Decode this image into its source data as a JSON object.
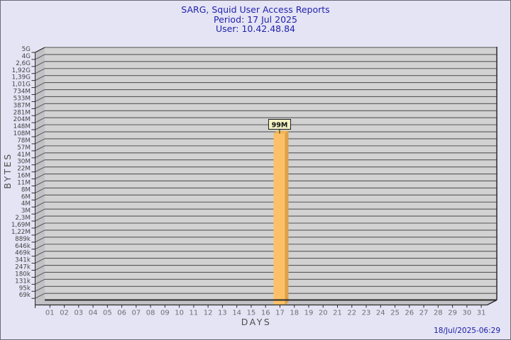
{
  "window": {
    "background": "#e4e4f5",
    "border_color": "#6a6a78"
  },
  "header": {
    "title": "SARG, Squid User Access Reports",
    "period": "Period: 17 Jul 2025",
    "user": "User: 10.42.48.84",
    "text_color": "#2222aa"
  },
  "footer": {
    "timestamp": "18/Jul/2025-06:29",
    "text_color": "#1b1ba5"
  },
  "chart_data": {
    "type": "bar",
    "title": "SARG, Squid User Access Reports",
    "subtitle": [
      "Period: 17 Jul 2025",
      "User: 10.42.48.84"
    ],
    "xlabel": "DAYS",
    "ylabel": "BYTES",
    "grid": true,
    "style": "3d-bar-pseudo-log-scale",
    "y_tick_labels": [
      "5G",
      "4G",
      "2,6G",
      "1,92G",
      "1,39G",
      "1,01G",
      "734M",
      "533M",
      "387M",
      "281M",
      "204M",
      "148M",
      "108M",
      "78M",
      "57M",
      "41M",
      "30M",
      "22M",
      "16M",
      "11M",
      "8M",
      "6M",
      "4M",
      "3M",
      "2,3M",
      "1,69M",
      "1,22M",
      "889k",
      "646k",
      "469k",
      "341k",
      "247k",
      "180k",
      "131k",
      "95k",
      "69k"
    ],
    "x_categories": [
      "01",
      "02",
      "03",
      "04",
      "05",
      "06",
      "07",
      "08",
      "09",
      "10",
      "11",
      "12",
      "13",
      "14",
      "15",
      "16",
      "17",
      "18",
      "19",
      "20",
      "21",
      "22",
      "23",
      "24",
      "25",
      "26",
      "27",
      "28",
      "29",
      "30",
      "31"
    ],
    "bars": [
      {
        "x": "17",
        "value_label": "99M",
        "approx_bytes": 99000000
      }
    ],
    "colors": {
      "plot_bg": "#d2d2d2",
      "wall": "#c2c2c6",
      "gridline": "#58585a",
      "axis_dark": "#2a2a2a",
      "y_label": "#454545",
      "x_label": "#6e6e6e",
      "axis_title": "#4d4d4d",
      "bar_front": "#fcc168",
      "bar_side": "#dfa047",
      "bar_top": "#edb558",
      "value_label_bg": "#f2f2c4",
      "value_label_border": "#1a1a1a",
      "value_label_text": "#111111"
    }
  }
}
